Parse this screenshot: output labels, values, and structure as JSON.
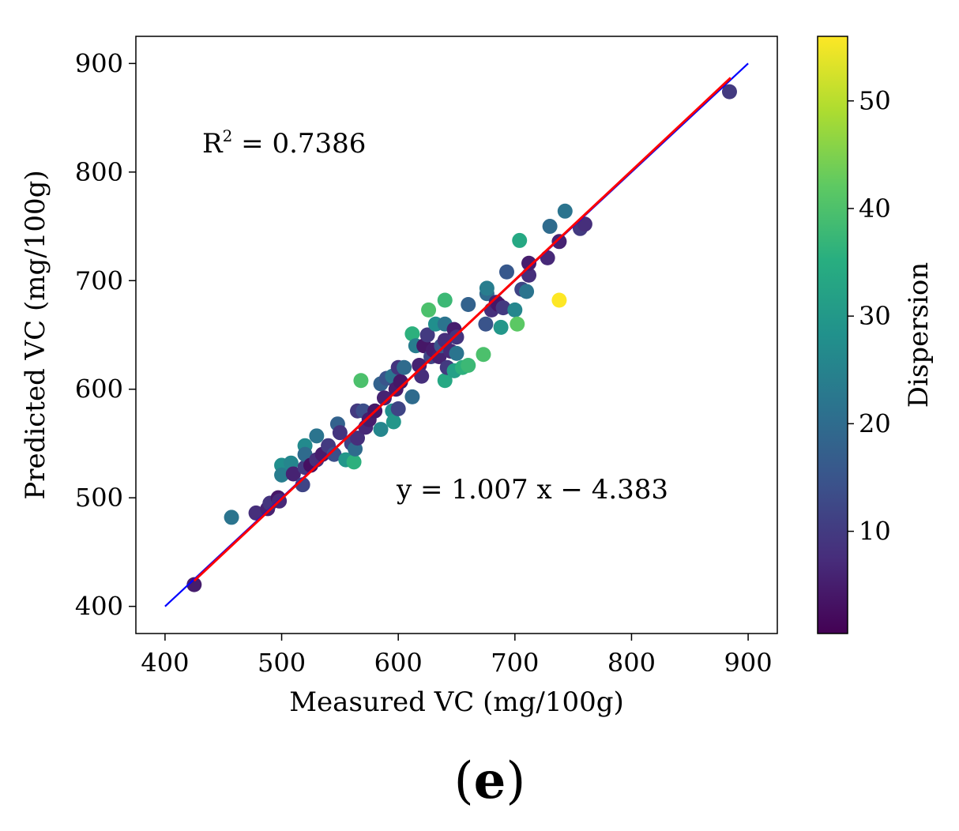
{
  "chart_data": {
    "type": "scatter",
    "title": "",
    "xlabel": "Measured VC (mg/100g)",
    "ylabel": "Predicted VC (mg/100g)",
    "xlim": [
      375,
      925
    ],
    "ylim": [
      375,
      925
    ],
    "xticks": [
      400,
      500,
      600,
      700,
      800,
      900
    ],
    "yticks": [
      400,
      500,
      600,
      700,
      800,
      900
    ],
    "xtick_labels": [
      "400",
      "500",
      "600",
      "700",
      "800",
      "900"
    ],
    "ytick_labels": [
      "400",
      "500",
      "600",
      "700",
      "800",
      "900"
    ],
    "grid": false,
    "colorbar": {
      "label": "Dispersion",
      "range": [
        0.5,
        56
      ],
      "ticks": [
        10,
        20,
        30,
        40,
        50
      ],
      "tick_labels": [
        "10",
        "20",
        "30",
        "40",
        "50"
      ],
      "colormap": "viridis"
    },
    "annotations": {
      "r2_text": "R",
      "r2_superscript": "2",
      "r2_value_text": " = 0.7386",
      "equation": "y = 1.007 x − 4.383"
    },
    "lines": [
      {
        "name": "identity",
        "color": "#0000ff",
        "x": [
          400,
          900
        ],
        "y": [
          400,
          900
        ]
      },
      {
        "name": "fit",
        "color": "#ff0000",
        "x": [
          425,
          885
        ],
        "slope": 1.007,
        "intercept": -4.383
      }
    ],
    "points": [
      [
        425,
        420,
        5
      ],
      [
        457,
        482,
        22
      ],
      [
        478,
        486,
        8
      ],
      [
        488,
        490,
        6
      ],
      [
        490,
        495,
        9
      ],
      [
        497,
        500,
        4
      ],
      [
        498,
        497,
        7
      ],
      [
        500,
        530,
        28
      ],
      [
        500,
        521,
        24
      ],
      [
        508,
        532,
        26
      ],
      [
        510,
        522,
        6
      ],
      [
        518,
        512,
        12
      ],
      [
        520,
        528,
        10
      ],
      [
        520,
        548,
        27
      ],
      [
        520,
        540,
        20
      ],
      [
        525,
        530,
        3
      ],
      [
        530,
        557,
        22
      ],
      [
        530,
        535,
        8
      ],
      [
        535,
        540,
        5
      ],
      [
        540,
        548,
        10
      ],
      [
        545,
        540,
        14
      ],
      [
        548,
        568,
        18
      ],
      [
        550,
        560,
        9
      ],
      [
        555,
        535,
        30
      ],
      [
        560,
        550,
        12
      ],
      [
        562,
        533,
        36
      ],
      [
        563,
        545,
        20
      ],
      [
        565,
        555,
        8
      ],
      [
        565,
        580,
        10
      ],
      [
        568,
        608,
        40
      ],
      [
        570,
        580,
        14
      ],
      [
        572,
        565,
        7
      ],
      [
        575,
        572,
        5
      ],
      [
        580,
        580,
        4
      ],
      [
        585,
        563,
        26
      ],
      [
        585,
        605,
        18
      ],
      [
        588,
        592,
        6
      ],
      [
        590,
        610,
        15
      ],
      [
        595,
        612,
        22
      ],
      [
        595,
        580,
        28
      ],
      [
        596,
        570,
        30
      ],
      [
        598,
        600,
        5
      ],
      [
        600,
        582,
        12
      ],
      [
        600,
        620,
        9
      ],
      [
        602,
        607,
        4
      ],
      [
        605,
        620,
        20
      ],
      [
        612,
        593,
        20
      ],
      [
        612,
        651,
        36
      ],
      [
        615,
        640,
        24
      ],
      [
        618,
        622,
        6
      ],
      [
        620,
        612,
        8
      ],
      [
        622,
        640,
        4
      ],
      [
        625,
        650,
        10
      ],
      [
        626,
        673,
        40
      ],
      [
        628,
        630,
        12
      ],
      [
        630,
        636,
        5
      ],
      [
        632,
        660,
        28
      ],
      [
        635,
        630,
        6
      ],
      [
        637,
        640,
        15
      ],
      [
        640,
        682,
        38
      ],
      [
        640,
        660,
        22
      ],
      [
        640,
        645,
        8
      ],
      [
        640,
        608,
        34
      ],
      [
        642,
        620,
        10
      ],
      [
        645,
        635,
        7
      ],
      [
        648,
        617,
        32
      ],
      [
        648,
        655,
        5
      ],
      [
        650,
        633,
        22
      ],
      [
        650,
        648,
        9
      ],
      [
        655,
        620,
        36
      ],
      [
        660,
        622,
        38
      ],
      [
        660,
        678,
        18
      ],
      [
        673,
        632,
        40
      ],
      [
        675,
        660,
        15
      ],
      [
        676,
        688,
        20
      ],
      [
        676,
        693,
        24
      ],
      [
        680,
        673,
        8
      ],
      [
        684,
        680,
        6
      ],
      [
        686,
        678,
        4
      ],
      [
        688,
        657,
        30
      ],
      [
        690,
        675,
        10
      ],
      [
        693,
        708,
        16
      ],
      [
        700,
        673,
        26
      ],
      [
        702,
        660,
        42
      ],
      [
        704,
        737,
        34
      ],
      [
        706,
        692,
        12
      ],
      [
        710,
        690,
        22
      ],
      [
        712,
        705,
        8
      ],
      [
        712,
        716,
        5
      ],
      [
        728,
        721,
        7
      ],
      [
        730,
        750,
        20
      ],
      [
        738,
        736,
        6
      ],
      [
        738,
        682,
        56
      ],
      [
        743,
        764,
        22
      ],
      [
        756,
        748,
        10
      ],
      [
        760,
        752,
        8
      ],
      [
        884,
        874,
        10
      ]
    ]
  },
  "figure": {
    "caption_open": "(",
    "caption_letter": "e",
    "caption_close": ")"
  }
}
